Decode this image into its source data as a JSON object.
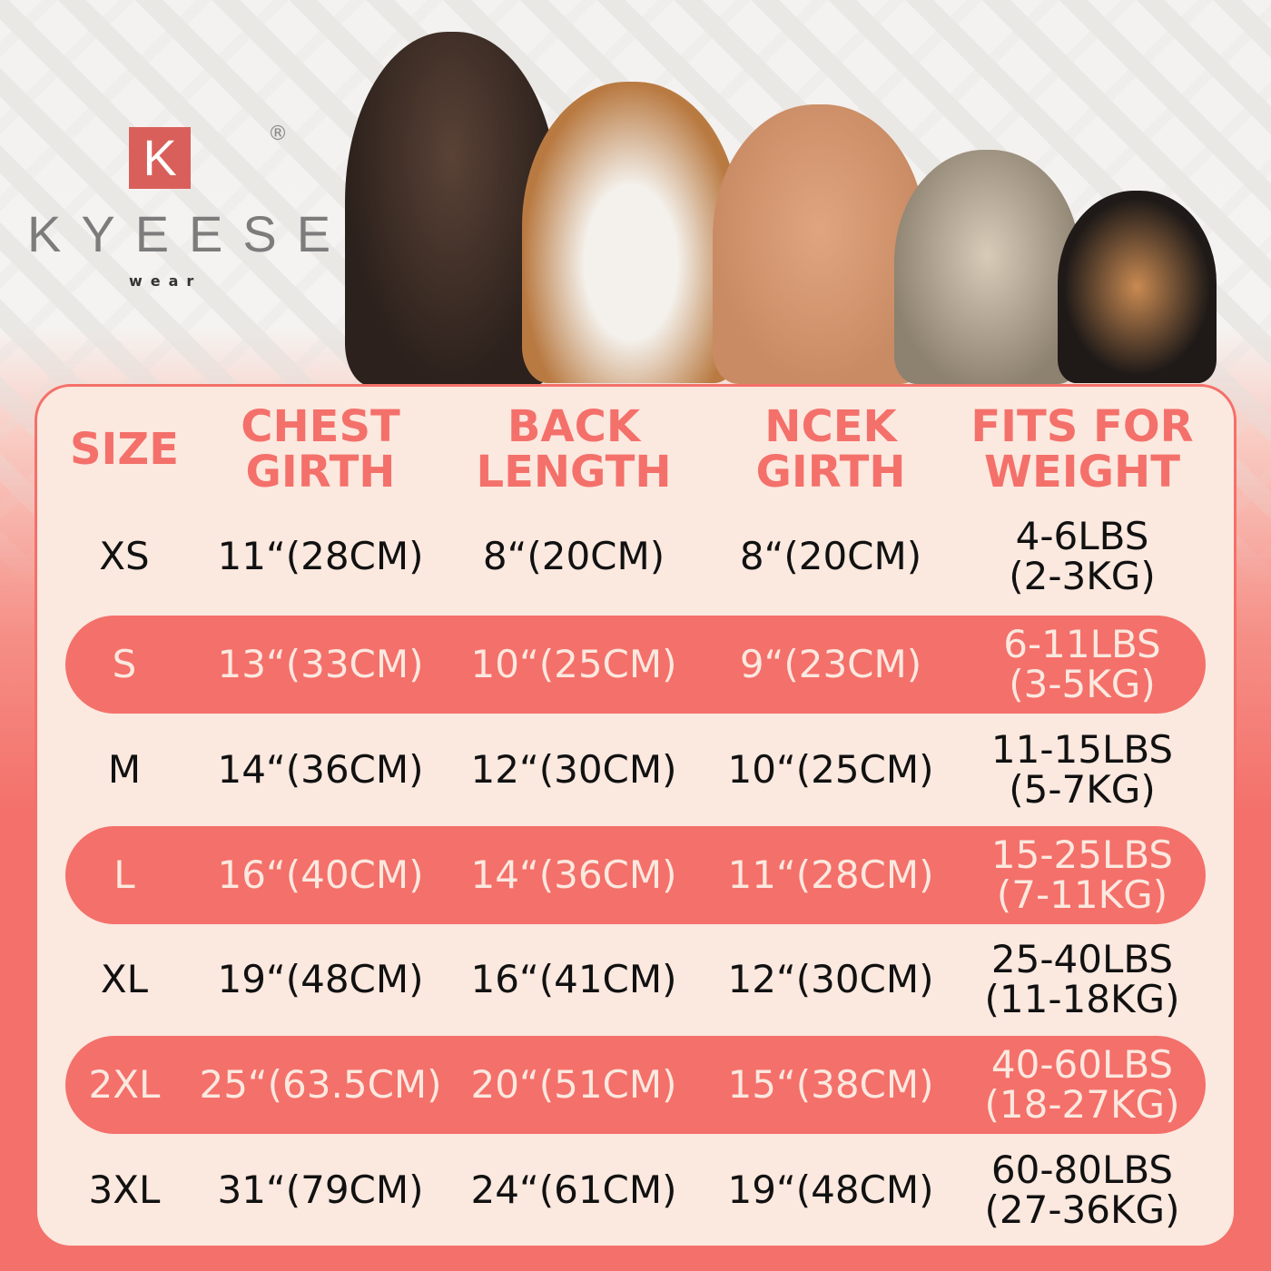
{
  "brand": {
    "mark": "K",
    "name": "KYEESE",
    "sub": "wear",
    "registered": "®",
    "accent": "#f4706a"
  },
  "colors": {
    "accent": "#f4706a",
    "panel": "#fbe8df",
    "text": "#111111"
  },
  "headers": [
    "SIZE",
    "CHEST\nGIRTH",
    "BACK\nLENGTH",
    "NCEK\nGIRTH",
    "FITS FOR\nWEIGHT"
  ],
  "rows": [
    {
      "size": "XS",
      "chest": "11“(28CM)",
      "back": "8“(20CM)",
      "neck": "8“(20CM)",
      "weight": "4-6LBS\n(2-3KG)",
      "highlight": false
    },
    {
      "size": "S",
      "chest": "13“(33CM)",
      "back": "10“(25CM)",
      "neck": "9“(23CM)",
      "weight": "6-11LBS\n(3-5KG)",
      "highlight": true
    },
    {
      "size": "M",
      "chest": "14“(36CM)",
      "back": "12“(30CM)",
      "neck": "10“(25CM)",
      "weight": "11-15LBS\n(5-7KG)",
      "highlight": false
    },
    {
      "size": "L",
      "chest": "16“(40CM)",
      "back": "14“(36CM)",
      "neck": "11“(28CM)",
      "weight": "15-25LBS\n(7-11KG)",
      "highlight": true
    },
    {
      "size": "XL",
      "chest": "19“(48CM)",
      "back": "16“(41CM)",
      "neck": "12“(30CM)",
      "weight": "25-40LBS\n(11-18KG)",
      "highlight": false
    },
    {
      "size": "2XL",
      "chest": "25“(63.5CM)",
      "back": "20“(51CM)",
      "neck": "15“(38CM)",
      "weight": "40-60LBS\n(18-27KG)",
      "highlight": true
    },
    {
      "size": "3XL",
      "chest": "31“(79CM)",
      "back": "24“(61CM)",
      "neck": "19“(48CM)",
      "weight": "60-80LBS\n(27-36KG)",
      "highlight": false
    }
  ]
}
